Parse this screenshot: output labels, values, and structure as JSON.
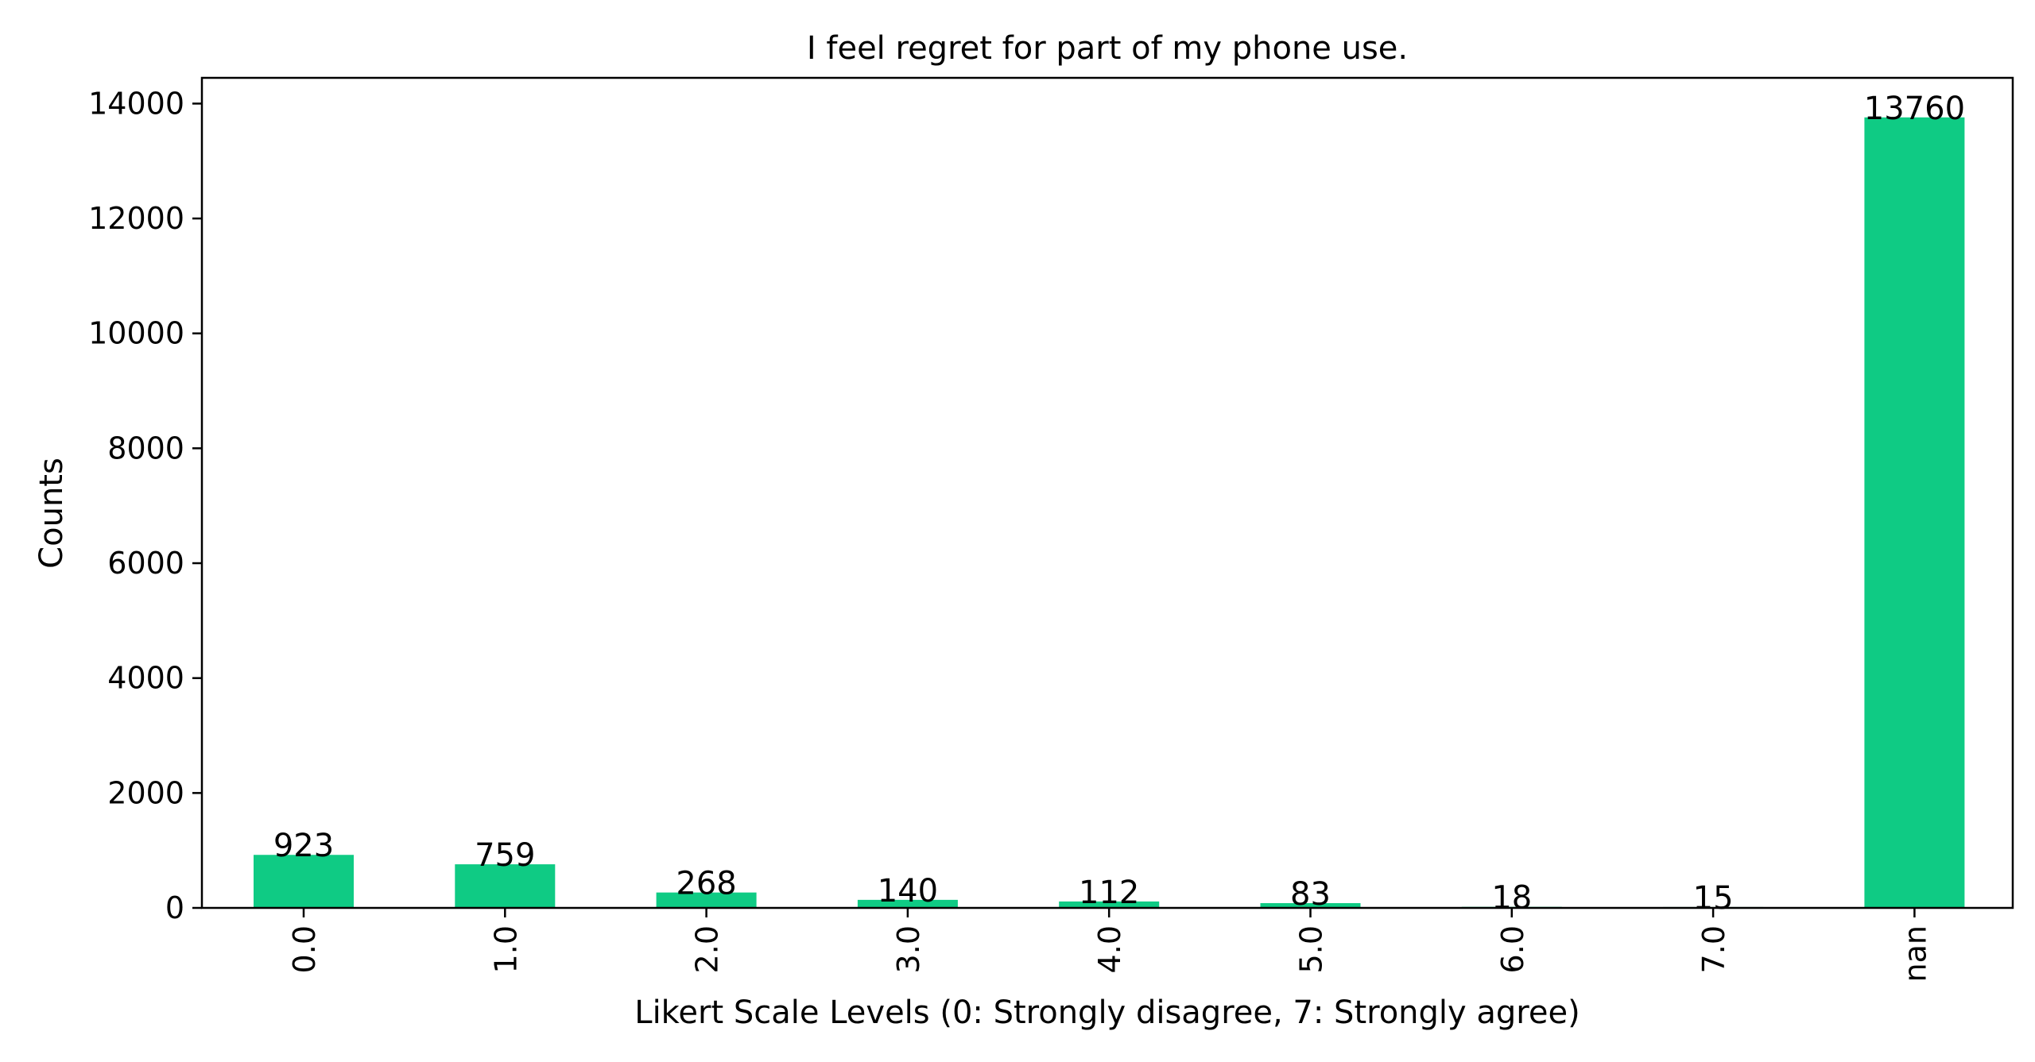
{
  "colors": {
    "bar": "#0fcb84",
    "text": "#000000"
  },
  "chart_data": {
    "type": "bar",
    "title": "I feel regret for part of my phone use.",
    "xlabel": "Likert Scale Levels (0: Strongly disagree, 7: Strongly agree)",
    "ylabel": "Counts",
    "categories": [
      "0.0",
      "1.0",
      "2.0",
      "3.0",
      "4.0",
      "5.0",
      "6.0",
      "7.0",
      "nan"
    ],
    "values": [
      923,
      759,
      268,
      140,
      112,
      83,
      18,
      15,
      13760
    ],
    "data_labels": [
      "923",
      "759",
      "268",
      "140",
      "112",
      "83",
      "18",
      "15",
      "13760"
    ],
    "ylim": [
      0,
      14448
    ],
    "yticks": [
      0,
      2000,
      4000,
      6000,
      8000,
      10000,
      12000,
      14000
    ],
    "ytick_labels": [
      "0",
      "2000",
      "4000",
      "6000",
      "8000",
      "10000",
      "12000",
      "14000"
    ],
    "grid": false,
    "legend": "none"
  }
}
